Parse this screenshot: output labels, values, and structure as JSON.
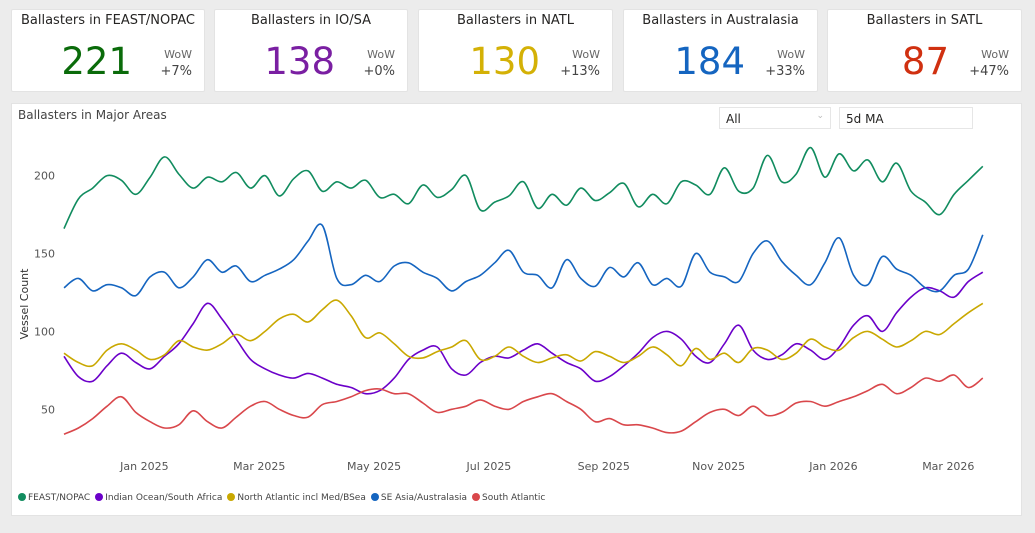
{
  "kpis": [
    {
      "title": "Ballasters in FEAST/NOPAC",
      "value": "221",
      "wow_label": "WoW",
      "wow": "+7%",
      "color": "#0a6b0a"
    },
    {
      "title": "Ballasters in IO/SA",
      "value": "138",
      "wow_label": "WoW",
      "wow": "+0%",
      "color": "#7a1fa2"
    },
    {
      "title": "Ballasters in NATL",
      "value": "130",
      "wow_label": "WoW",
      "wow": "+13%",
      "color": "#d4b106"
    },
    {
      "title": "Ballasters in Australasia",
      "value": "184",
      "wow_label": "WoW",
      "wow": "+33%",
      "color": "#1565c0"
    },
    {
      "title": "Ballasters in SATL",
      "value": "87",
      "wow_label": "WoW",
      "wow": "+47%",
      "color": "#d03010"
    }
  ],
  "filters": {
    "region": "All",
    "smoothing": "5d MA"
  },
  "chart_data": {
    "type": "line",
    "title": "Ballasters in Major Areas",
    "xlabel": "",
    "ylabel": "Vessel Count",
    "ylim": [
      20,
      228
    ],
    "yticks": [
      50,
      100,
      150,
      200
    ],
    "xlim": [
      0,
      16.3
    ],
    "xtick_labels": [
      "Jan 2025",
      "Mar 2025",
      "May 2025",
      "Jul 2025",
      "Sep 2025",
      "Nov 2025",
      "Jan 2026",
      "Mar 2026"
    ],
    "xtick_positions": [
      1.4,
      3.4,
      5.4,
      7.4,
      9.4,
      11.4,
      13.4,
      15.4
    ],
    "x": [
      0.0,
      0.25,
      0.5,
      0.75,
      1.0,
      1.25,
      1.5,
      1.75,
      2.0,
      2.25,
      2.5,
      2.75,
      3.0,
      3.25,
      3.5,
      3.75,
      4.0,
      4.25,
      4.5,
      4.75,
      5.0,
      5.25,
      5.5,
      5.75,
      6.0,
      6.25,
      6.5,
      6.75,
      7.0,
      7.25,
      7.5,
      7.75,
      8.0,
      8.25,
      8.5,
      8.75,
      9.0,
      9.25,
      9.5,
      9.75,
      10.0,
      10.25,
      10.5,
      10.75,
      11.0,
      11.25,
      11.5,
      11.75,
      12.0,
      12.25,
      12.5,
      12.75,
      13.0,
      13.25,
      13.5,
      13.75,
      14.0,
      14.25,
      14.5,
      14.75,
      15.0,
      15.25,
      15.5,
      15.75,
      16.0
    ],
    "series": [
      {
        "name": "FEAST/NOPAC",
        "color": "#118c5f",
        "values": [
          166,
          185,
          192,
          200,
          197,
          188,
          199,
          212,
          201,
          192,
          199,
          196,
          202,
          192,
          200,
          187,
          198,
          203,
          190,
          196,
          192,
          197,
          186,
          188,
          182,
          194,
          186,
          191,
          200,
          178,
          183,
          187,
          196,
          179,
          188,
          181,
          192,
          184,
          189,
          195,
          180,
          188,
          182,
          196,
          194,
          188,
          205,
          190,
          192,
          213,
          196,
          201,
          218,
          199,
          214,
          203,
          210,
          196,
          208,
          190,
          183,
          175,
          188,
          197,
          206
        ]
      },
      {
        "name": "Indian Ocean/South Africa",
        "color": "#6b00c9",
        "values": [
          84,
          71,
          68,
          78,
          86,
          80,
          76,
          84,
          92,
          105,
          118,
          108,
          95,
          82,
          76,
          72,
          70,
          73,
          70,
          66,
          64,
          60,
          62,
          70,
          82,
          88,
          90,
          76,
          72,
          80,
          84,
          83,
          88,
          92,
          86,
          80,
          76,
          68,
          71,
          78,
          86,
          96,
          100,
          95,
          84,
          80,
          92,
          104,
          88,
          82,
          85,
          92,
          88,
          82,
          90,
          104,
          110,
          100,
          112,
          122,
          128,
          126,
          122,
          132,
          138
        ]
      },
      {
        "name": "North Atlantic incl Med/BSea",
        "color": "#c9a800",
        "values": [
          86,
          80,
          78,
          88,
          92,
          88,
          82,
          85,
          94,
          90,
          88,
          92,
          98,
          94,
          100,
          108,
          111,
          106,
          114,
          120,
          110,
          96,
          99,
          92,
          84,
          83,
          87,
          90,
          94,
          82,
          84,
          90,
          84,
          80,
          83,
          85,
          81,
          87,
          84,
          80,
          84,
          90,
          85,
          78,
          89,
          82,
          86,
          80,
          89,
          88,
          82,
          86,
          95,
          90,
          88,
          96,
          100,
          95,
          90,
          94,
          100,
          98,
          105,
          112,
          118
        ]
      },
      {
        "name": "SE Asia/Australasia",
        "color": "#1565c0",
        "values": [
          128,
          134,
          126,
          130,
          128,
          123,
          135,
          138,
          128,
          135,
          146,
          138,
          142,
          132,
          136,
          140,
          146,
          158,
          168,
          134,
          130,
          136,
          132,
          142,
          144,
          138,
          134,
          126,
          132,
          136,
          144,
          152,
          138,
          136,
          128,
          146,
          134,
          129,
          141,
          135,
          144,
          130,
          134,
          129,
          150,
          138,
          135,
          132,
          150,
          158,
          145,
          136,
          130,
          144,
          160,
          136,
          130,
          148,
          140,
          136,
          128,
          126,
          136,
          140,
          162
        ]
      },
      {
        "name": "South Atlantic",
        "color": "#d9474b",
        "values": [
          34,
          38,
          44,
          52,
          58,
          48,
          42,
          38,
          40,
          49,
          42,
          38,
          45,
          52,
          55,
          50,
          46,
          45,
          53,
          55,
          58,
          62,
          63,
          60,
          60,
          54,
          48,
          50,
          52,
          56,
          52,
          50,
          55,
          58,
          60,
          55,
          50,
          42,
          44,
          40,
          40,
          38,
          35,
          36,
          42,
          48,
          50,
          46,
          52,
          46,
          48,
          54,
          55,
          52,
          55,
          58,
          62,
          66,
          60,
          64,
          70,
          68,
          72,
          64,
          70
        ]
      }
    ]
  }
}
